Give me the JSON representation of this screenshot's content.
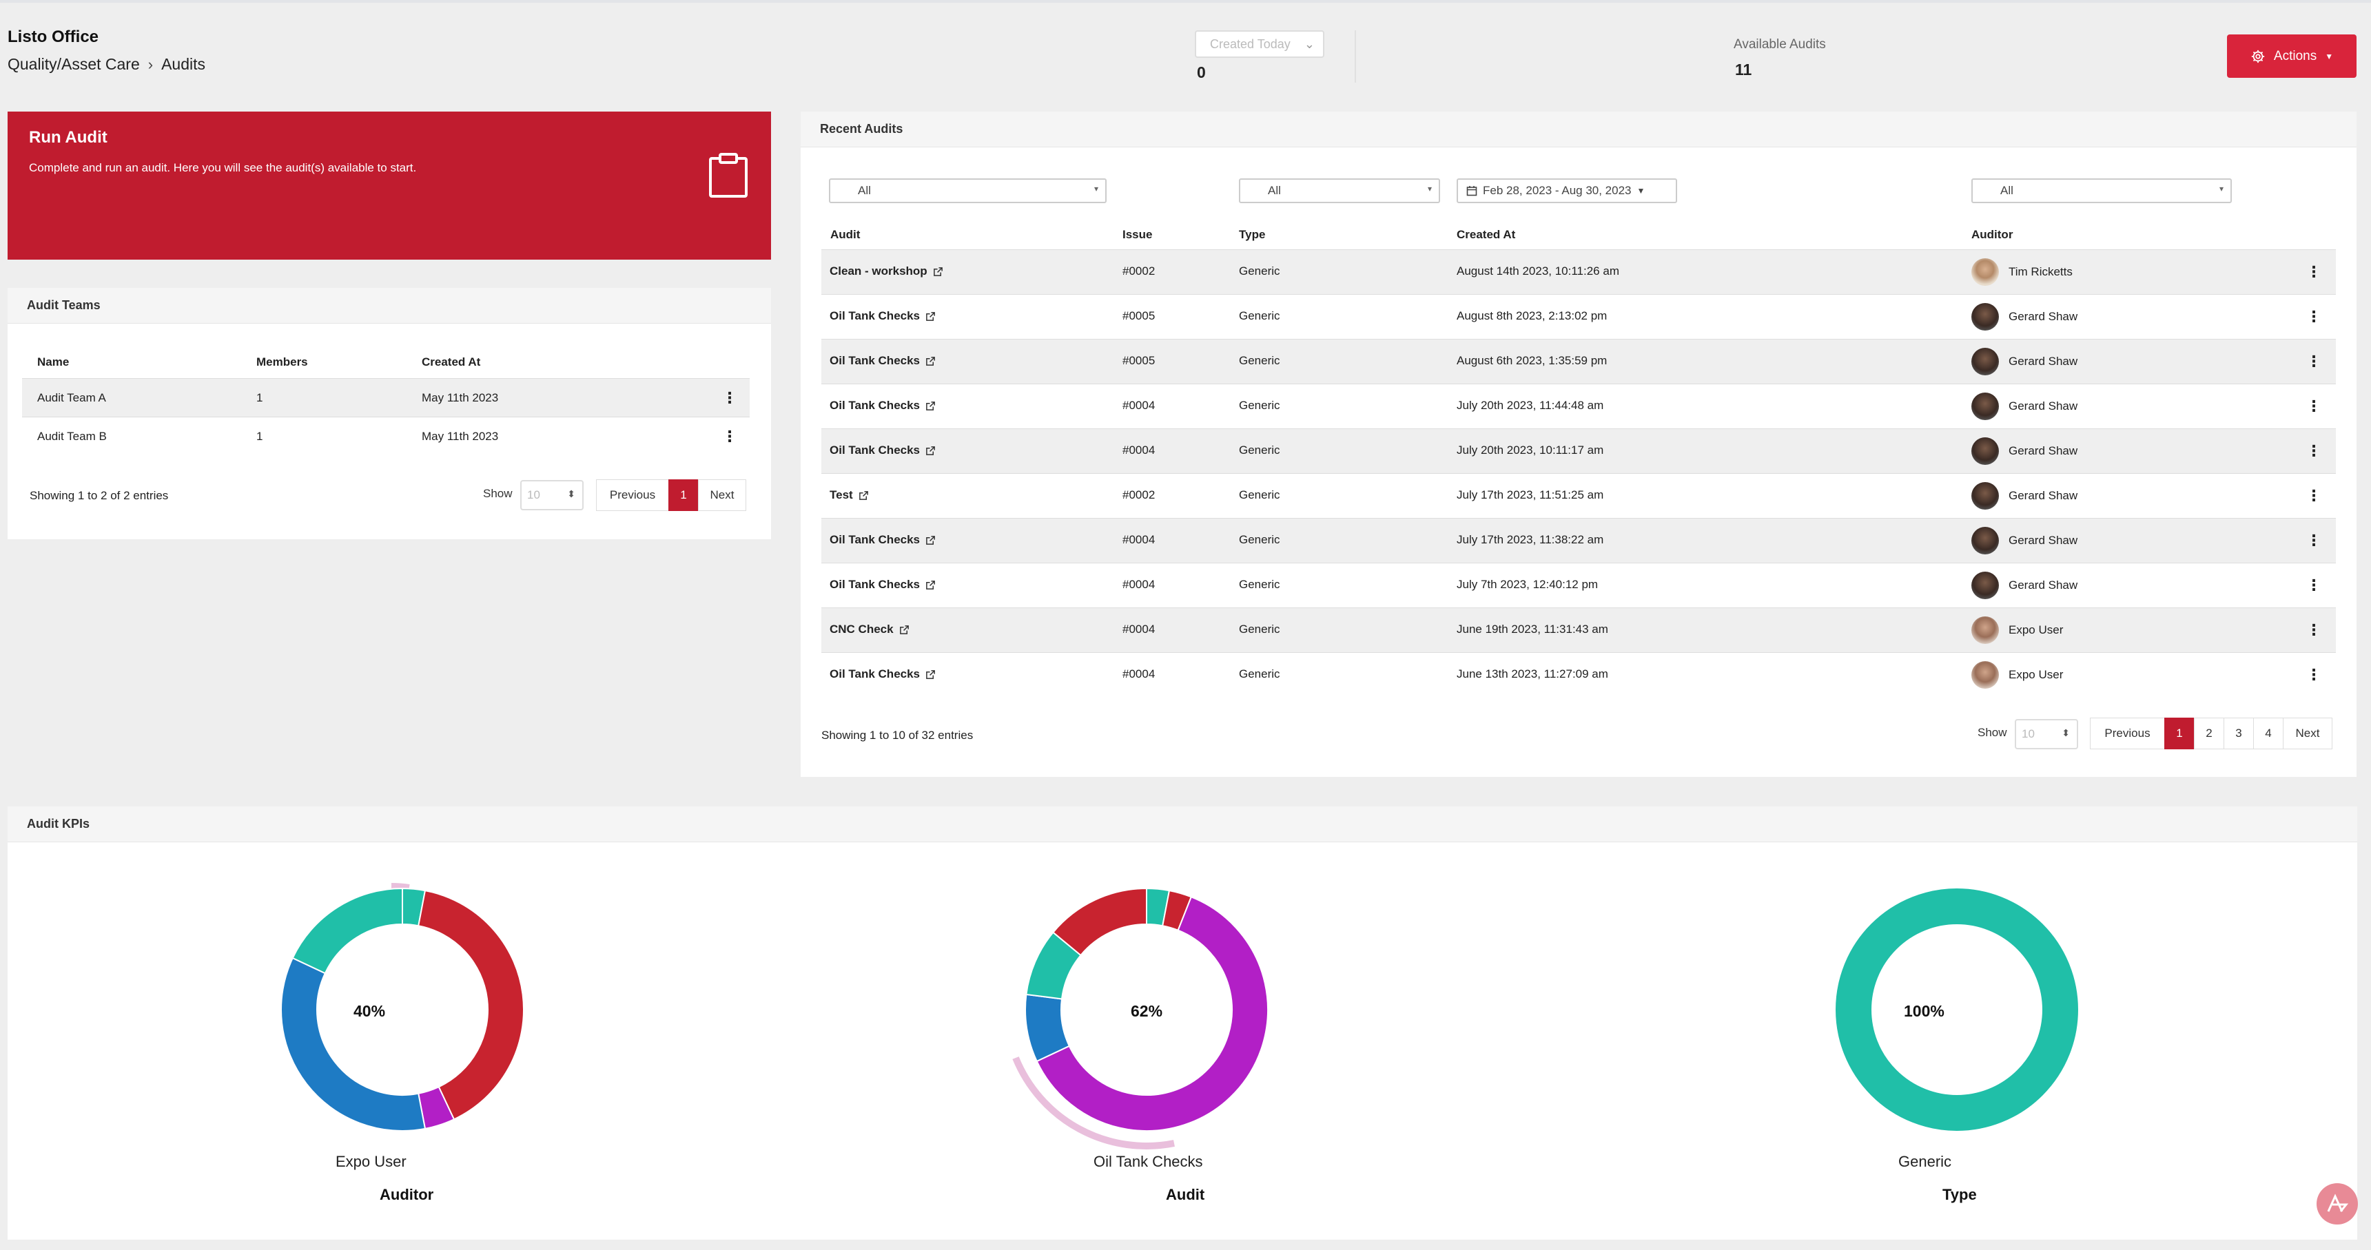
{
  "header": {
    "org": "Listo Office",
    "breadcrumb": [
      "Quality/Asset Care",
      "Audits"
    ],
    "created_filter": "Created Today",
    "created_count": "0",
    "available_label": "Available Audits",
    "available_count": "11",
    "actions_label": "Actions"
  },
  "run_audit": {
    "title": "Run Audit",
    "description": "Complete and run an audit. Here you will see the audit(s) available to start.",
    "icon": "clipboard-icon"
  },
  "audit_teams": {
    "title": "Audit Teams",
    "columns": [
      "Name",
      "Members",
      "Created At"
    ],
    "rows": [
      {
        "name": "Audit Team A",
        "members": "1",
        "created": "May 11th 2023"
      },
      {
        "name": "Audit Team B",
        "members": "1",
        "created": "May 11th 2023"
      }
    ],
    "entries": "Showing 1 to 2 of 2 entries",
    "show_label": "Show",
    "show_value": "10",
    "pager": {
      "prev": "Previous",
      "pages": [
        "1"
      ],
      "next": "Next"
    }
  },
  "recent_audits": {
    "title": "Recent Audits",
    "filters": {
      "audit": "All",
      "type": "All",
      "date_range": "Feb 28, 2023 - Aug 30, 2023",
      "auditor": "All"
    },
    "columns": [
      "Audit",
      "Issue",
      "Type",
      "Created At",
      "Auditor"
    ],
    "rows": [
      {
        "audit": "Clean - workshop",
        "issue": "#0002",
        "type": "Generic",
        "created": "August 14th 2023, 10:11:26 am",
        "auditor": "Tim Ricketts"
      },
      {
        "audit": "Oil Tank Checks",
        "issue": "#0005",
        "type": "Generic",
        "created": "August 8th 2023, 2:13:02 pm",
        "auditor": "Gerard Shaw"
      },
      {
        "audit": "Oil Tank Checks",
        "issue": "#0005",
        "type": "Generic",
        "created": "August 6th 2023, 1:35:59 pm",
        "auditor": "Gerard Shaw"
      },
      {
        "audit": "Oil Tank Checks",
        "issue": "#0004",
        "type": "Generic",
        "created": "July 20th 2023, 11:44:48 am",
        "auditor": "Gerard Shaw"
      },
      {
        "audit": "Oil Tank Checks",
        "issue": "#0004",
        "type": "Generic",
        "created": "July 20th 2023, 10:11:17 am",
        "auditor": "Gerard Shaw"
      },
      {
        "audit": "Test",
        "issue": "#0002",
        "type": "Generic",
        "created": "July 17th 2023, 11:51:25 am",
        "auditor": "Gerard Shaw"
      },
      {
        "audit": "Oil Tank Checks",
        "issue": "#0004",
        "type": "Generic",
        "created": "July 17th 2023, 11:38:22 am",
        "auditor": "Gerard Shaw"
      },
      {
        "audit": "Oil Tank Checks",
        "issue": "#0004",
        "type": "Generic",
        "created": "July 7th 2023, 12:40:12 pm",
        "auditor": "Gerard Shaw"
      },
      {
        "audit": "CNC Check",
        "issue": "#0004",
        "type": "Generic",
        "created": "June 19th 2023, 11:31:43 am",
        "auditor": "Expo User"
      },
      {
        "audit": "Oil Tank Checks",
        "issue": "#0004",
        "type": "Generic",
        "created": "June 13th 2023, 11:27:09 am",
        "auditor": "Expo User"
      }
    ],
    "entries": "Showing 1 to 10 of 32 entries",
    "show_label": "Show",
    "show_value": "10",
    "pager": {
      "prev": "Previous",
      "pages": [
        "1",
        "2",
        "3",
        "4"
      ],
      "next": "Next"
    }
  },
  "audit_kpis": {
    "title": "Audit KPIs",
    "colors": {
      "teal": "#20bfa8",
      "red": "#c8232f",
      "blue": "#1e7bc4",
      "magenta": "#b21fc6",
      "pink": "#e9bfdc"
    }
  },
  "chart_data": [
    {
      "type": "pie",
      "title": "Auditor",
      "center_label": "40%",
      "highlighted": "Expo User",
      "slices": [
        {
          "color": "#20bfa8",
          "value": 3
        },
        {
          "color": "#c8232f",
          "value": 40
        },
        {
          "color": "#b21fc6",
          "value": 4
        },
        {
          "color": "#1e7bc4",
          "value": 35
        },
        {
          "color": "#20bfa8",
          "value": 18
        }
      ]
    },
    {
      "type": "pie",
      "title": "Audit",
      "center_label": "62%",
      "highlighted": "Oil Tank Checks",
      "slices": [
        {
          "color": "#20bfa8",
          "value": 3
        },
        {
          "color": "#c8232f",
          "value": 3
        },
        {
          "color": "#b21fc6",
          "value": 62
        },
        {
          "color": "#1e7bc4",
          "value": 9
        },
        {
          "color": "#20bfa8",
          "value": 9
        },
        {
          "color": "#c8232f",
          "value": 14
        }
      ]
    },
    {
      "type": "pie",
      "title": "Type",
      "center_label": "100%",
      "highlighted": "Generic",
      "slices": [
        {
          "color": "#20bfa8",
          "value": 100
        }
      ]
    }
  ]
}
